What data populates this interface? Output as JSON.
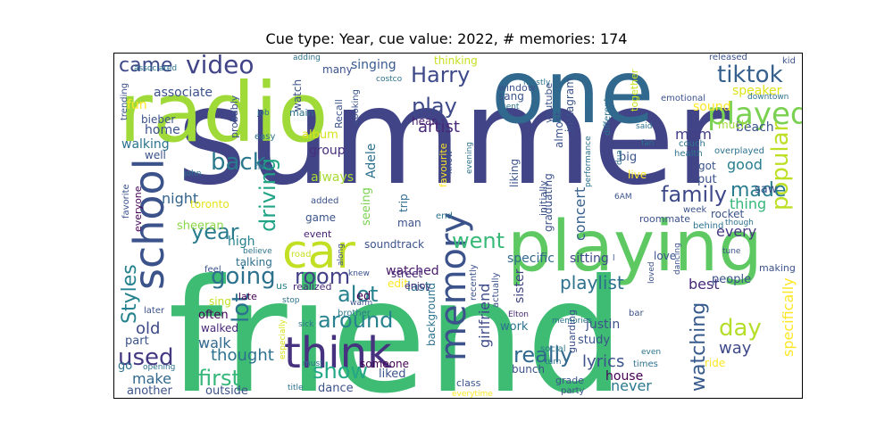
{
  "title": "Cue type: Year, cue value: 2022, # memories: 174",
  "words": [
    {
      "text": "summer",
      "color": "#414487"
    },
    {
      "text": "friend",
      "color": "#3fbc73"
    },
    {
      "text": "one",
      "color": "#31688e"
    },
    {
      "text": "radio",
      "color": "#a0da39"
    },
    {
      "text": "playing",
      "color": "#5ec962"
    },
    {
      "text": "think",
      "color": "#46327e"
    },
    {
      "text": "car",
      "color": "#c2df23"
    },
    {
      "text": "memory",
      "color": "#3b528b"
    },
    {
      "text": "school",
      "color": "#3b528b"
    },
    {
      "text": "played",
      "color": "#7ad151"
    },
    {
      "text": "tiktok",
      "color": "#355f8d"
    },
    {
      "text": "video",
      "color": "#414487"
    },
    {
      "text": "came",
      "color": "#3e4989"
    },
    {
      "text": "Harry",
      "color": "#3e4989"
    },
    {
      "text": "play",
      "color": "#3e4989"
    },
    {
      "text": "family",
      "color": "#3e4989"
    },
    {
      "text": "back",
      "color": "#2a788e"
    },
    {
      "text": "driving",
      "color": "#20a486"
    },
    {
      "text": "popular",
      "color": "#bddf26"
    },
    {
      "text": "made",
      "color": "#287c8e"
    },
    {
      "text": "year",
      "color": "#287c8e"
    },
    {
      "text": "went",
      "color": "#38b977"
    },
    {
      "text": "going",
      "color": "#2c728e"
    },
    {
      "text": "lot",
      "color": "#2c728e"
    },
    {
      "text": "room",
      "color": "#424086"
    },
    {
      "text": "alot",
      "color": "#26828e"
    },
    {
      "text": "around",
      "color": "#26828e"
    },
    {
      "text": "Styles",
      "color": "#26828e"
    },
    {
      "text": "first",
      "color": "#35b779"
    },
    {
      "text": "show",
      "color": "#22a884"
    },
    {
      "text": "really",
      "color": "#31688e"
    },
    {
      "text": "used",
      "color": "#443983"
    },
    {
      "text": "day",
      "color": "#b5de2b"
    },
    {
      "text": "watching",
      "color": "#375a8c"
    },
    {
      "text": "artist",
      "color": "#482878"
    },
    {
      "text": "playlist",
      "color": "#2d708e"
    },
    {
      "text": "night",
      "color": "#33638d"
    },
    {
      "text": "girlfriend",
      "color": "#3e4a89"
    },
    {
      "text": "specifically",
      "color": "#fde725"
    },
    {
      "text": "old",
      "color": "#3e4989"
    },
    {
      "text": "lyrics",
      "color": "#3b528b"
    },
    {
      "text": "way",
      "color": "#3e4989"
    },
    {
      "text": "thought",
      "color": "#2c728e"
    },
    {
      "text": "walk",
      "color": "#31688e"
    },
    {
      "text": "make",
      "color": "#31688e"
    },
    {
      "text": "never",
      "color": "#2a788e"
    },
    {
      "text": "house",
      "color": "#440154"
    },
    {
      "text": "concert",
      "color": "#355f8d"
    },
    {
      "text": "thing",
      "color": "#35b779"
    },
    {
      "text": "sitting",
      "color": "#3e4989"
    },
    {
      "text": "specific",
      "color": "#31688e"
    },
    {
      "text": "watched",
      "color": "#48186a"
    },
    {
      "text": "last",
      "color": "#2c728e"
    },
    {
      "text": "sister",
      "color": "#414487"
    },
    {
      "text": "best",
      "color": "#482878"
    },
    {
      "text": "every",
      "color": "#453781"
    },
    {
      "text": "good",
      "color": "#287d8e"
    },
    {
      "text": "mom",
      "color": "#433e85"
    },
    {
      "text": "sound",
      "color": "#fde725"
    },
    {
      "text": "speaker",
      "color": "#dde318"
    },
    {
      "text": "beach",
      "color": "#3b528b"
    },
    {
      "text": "much",
      "color": "#a2da37"
    },
    {
      "text": "home",
      "color": "#3b528b"
    },
    {
      "text": "walking",
      "color": "#2c728e"
    },
    {
      "text": "fun",
      "color": "#fde725"
    },
    {
      "text": "associate",
      "color": "#3b528b"
    },
    {
      "text": "bieber",
      "color": "#3b528b"
    },
    {
      "text": "singing",
      "color": "#375b8d"
    },
    {
      "text": "hear",
      "color": "#481f70"
    },
    {
      "text": "group",
      "color": "#472f7d"
    },
    {
      "text": "album",
      "color": "#d8e219"
    },
    {
      "text": "always",
      "color": "#a8db34"
    },
    {
      "text": "watch",
      "color": "#3b528b"
    },
    {
      "text": "main",
      "color": "#2d708e"
    },
    {
      "text": "Adele",
      "color": "#2d708e"
    },
    {
      "text": "trip",
      "color": "#2f6c8e"
    },
    {
      "text": "seeing",
      "color": "#7ad151"
    },
    {
      "text": "favourite",
      "color": "#fde725"
    },
    {
      "text": "game",
      "color": "#3b528b"
    },
    {
      "text": "event",
      "color": "#482173"
    },
    {
      "text": "soundtrack",
      "color": "#3b528b"
    },
    {
      "text": "high",
      "color": "#26828e"
    },
    {
      "text": "talking",
      "color": "#2d708e"
    },
    {
      "text": "sheeran",
      "color": "#8bd646"
    },
    {
      "text": "toronto",
      "color": "#e5e419"
    },
    {
      "text": "everyone",
      "color": "#440154"
    },
    {
      "text": "favorite",
      "color": "#3b528b"
    },
    {
      "text": "often",
      "color": "#440154"
    },
    {
      "text": "sing",
      "color": "#c0df25"
    },
    {
      "text": "walked",
      "color": "#482878"
    },
    {
      "text": "part",
      "color": "#3b528b"
    },
    {
      "text": "go",
      "color": "#2c728e"
    },
    {
      "text": "another",
      "color": "#3b528b"
    },
    {
      "text": "outside",
      "color": "#3b528b"
    },
    {
      "text": "dance",
      "color": "#3b528b"
    },
    {
      "text": "liked",
      "color": "#3b528b"
    },
    {
      "text": "someone",
      "color": "#440154"
    },
    {
      "text": "edit",
      "color": "#fde725"
    },
    {
      "text": "street",
      "color": "#482878"
    },
    {
      "text": "enjoy",
      "color": "#472c7a"
    },
    {
      "text": "ed",
      "color": "#440154"
    },
    {
      "text": "us",
      "color": "#26828e"
    },
    {
      "text": "realized",
      "color": "#482878"
    },
    {
      "text": "late",
      "color": "#440154"
    },
    {
      "text": "feel",
      "color": "#3b528b"
    },
    {
      "text": "believe",
      "color": "#2c728e"
    },
    {
      "text": "road",
      "color": "#c8e020"
    },
    {
      "text": "along",
      "color": "#3b528b"
    },
    {
      "text": "knew",
      "color": "#3b528b"
    },
    {
      "text": "warm",
      "color": "#3b528b"
    },
    {
      "text": "brother",
      "color": "#2a788e"
    },
    {
      "text": "sick",
      "color": "#2c728e"
    },
    {
      "text": "especially",
      "color": "#d8e219"
    },
    {
      "text": "later",
      "color": "#3b528b"
    },
    {
      "text": "must",
      "color": "#2c728e"
    },
    {
      "text": "opening",
      "color": "#2c728e"
    },
    {
      "text": "stop",
      "color": "#2c728e"
    },
    {
      "text": "title",
      "color": "#2c728e"
    },
    {
      "text": "class",
      "color": "#3b528b"
    },
    {
      "text": "everytime",
      "color": "#fde725"
    },
    {
      "text": "background",
      "color": "#2c728e"
    },
    {
      "text": "work",
      "color": "#2c728e"
    },
    {
      "text": "Elton",
      "color": "#482878"
    },
    {
      "text": "social",
      "color": "#2a788e"
    },
    {
      "text": "turn",
      "color": "#2c728e"
    },
    {
      "text": "bunch",
      "color": "#3b528b"
    },
    {
      "text": "grade",
      "color": "#3b528b"
    },
    {
      "text": "party",
      "color": "#3b528b"
    },
    {
      "text": "guarding",
      "color": "#3b528b"
    },
    {
      "text": "justin",
      "color": "#3b528b"
    },
    {
      "text": "study",
      "color": "#3b528b"
    },
    {
      "text": "even",
      "color": "#2c728e"
    },
    {
      "text": "times",
      "color": "#2c728e"
    },
    {
      "text": "bar",
      "color": "#3b528b"
    },
    {
      "text": "memories",
      "color": "#2c728e"
    },
    {
      "text": "people",
      "color": "#3b528b"
    },
    {
      "text": "ride",
      "color": "#fde725"
    },
    {
      "text": "loved",
      "color": "#3b528b"
    },
    {
      "text": "dancing",
      "color": "#3b528b"
    },
    {
      "text": "love",
      "color": "#3b528b"
    },
    {
      "text": "tune",
      "color": "#3b528b"
    },
    {
      "text": "making",
      "color": "#3b528b"
    },
    {
      "text": "saw",
      "color": "#3b528b"
    },
    {
      "text": "rocket",
      "color": "#3b528b"
    },
    {
      "text": "behind",
      "color": "#2c728e"
    },
    {
      "text": "though",
      "color": "#2c728e"
    },
    {
      "text": "week",
      "color": "#3b528b"
    },
    {
      "text": "roommate",
      "color": "#3b528b"
    },
    {
      "text": "6AM",
      "color": "#3b528b"
    },
    {
      "text": "put",
      "color": "#3b528b"
    },
    {
      "text": "got",
      "color": "#3b528b"
    },
    {
      "text": "health",
      "color": "#2c728e"
    },
    {
      "text": "overplayed",
      "color": "#2c728e"
    },
    {
      "text": "couch",
      "color": "#2c728e"
    },
    {
      "text": "emotional",
      "color": "#3b528b"
    },
    {
      "text": "live",
      "color": "#fde725"
    },
    {
      "text": "big",
      "color": "#3b528b"
    },
    {
      "text": "fan",
      "color": "#2c728e"
    },
    {
      "text": "dua",
      "color": "#2c728e"
    },
    {
      "text": "performance",
      "color": "#2c728e"
    },
    {
      "text": "graduating",
      "color": "#3b528b"
    },
    {
      "text": "initially",
      "color": "#3b528b"
    },
    {
      "text": "actually",
      "color": "#3b528b"
    },
    {
      "text": "recently",
      "color": "#3b528b"
    },
    {
      "text": "liking",
      "color": "#3b528b"
    },
    {
      "text": "know",
      "color": "#3b528b"
    },
    {
      "text": "evening",
      "color": "#2c728e"
    },
    {
      "text": "end",
      "color": "#2c728e"
    },
    {
      "text": "man",
      "color": "#3b528b"
    },
    {
      "text": "added",
      "color": "#3b528b"
    },
    {
      "text": "easy",
      "color": "#2c728e"
    },
    {
      "text": "new",
      "color": "#2c728e"
    },
    {
      "text": "well",
      "color": "#3b528b"
    },
    {
      "text": "john",
      "color": "#2c728e"
    },
    {
      "text": "job",
      "color": "#2c728e"
    },
    {
      "text": "probably",
      "color": "#3b528b"
    },
    {
      "text": "trending",
      "color": "#3b528b"
    },
    {
      "text": "associated",
      "color": "#2c728e"
    },
    {
      "text": "adding",
      "color": "#2c728e"
    },
    {
      "text": "many",
      "color": "#3b528b"
    },
    {
      "text": "Recall",
      "color": "#3b528b"
    },
    {
      "text": "cooking",
      "color": "#3b528b"
    },
    {
      "text": "thinking",
      "color": "#c8e020"
    },
    {
      "text": "costco",
      "color": "#2c728e"
    },
    {
      "text": "mostly",
      "color": "#2c728e"
    },
    {
      "text": "sang",
      "color": "#3b528b"
    },
    {
      "text": "window",
      "color": "#3b528b"
    },
    {
      "text": "sent",
      "color": "#2c728e"
    },
    {
      "text": "instagram",
      "color": "#3b528b"
    },
    {
      "text": "almost",
      "color": "#3b528b"
    },
    {
      "text": "fifa",
      "color": "#2c728e"
    },
    {
      "text": "youtube",
      "color": "#3b528b"
    },
    {
      "text": "together",
      "color": "#c8e020"
    },
    {
      "text": "different",
      "color": "#2c728e"
    },
    {
      "text": "released",
      "color": "#3b528b"
    },
    {
      "text": "said",
      "color": "#2c728e"
    },
    {
      "text": "kid",
      "color": "#3b528b"
    },
    {
      "text": "downtown",
      "color": "#2c728e"
    },
    {
      "text": "l",
      "color": "#3b528b"
    }
  ]
}
